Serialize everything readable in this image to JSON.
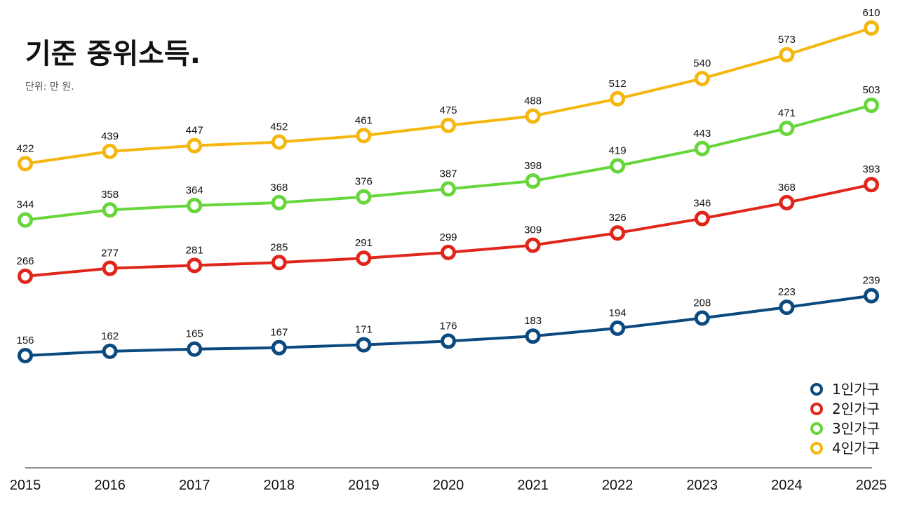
{
  "chart_data": {
    "type": "line",
    "title": "기준 중위소득.",
    "subtitle": "단위: 만 원.",
    "x": [
      "2015",
      "2016",
      "2017",
      "2018",
      "2019",
      "2020",
      "2021",
      "2022",
      "2023",
      "2024",
      "2025"
    ],
    "series": [
      {
        "name": "1인가구",
        "color": "#0b4a7f",
        "values": [
          156,
          162,
          165,
          167,
          171,
          176,
          183,
          194,
          208,
          223,
          239
        ]
      },
      {
        "name": "2인가구",
        "color": "#e0261b",
        "values": [
          266,
          277,
          281,
          285,
          291,
          299,
          309,
          326,
          346,
          368,
          393
        ]
      },
      {
        "name": "3인가구",
        "color": "#66d63a",
        "values": [
          344,
          358,
          364,
          368,
          376,
          387,
          398,
          419,
          443,
          471,
          503
        ]
      },
      {
        "name": "4인가구",
        "color": "#f5b70f",
        "values": [
          422,
          439,
          447,
          452,
          461,
          475,
          488,
          512,
          540,
          573,
          610
        ]
      }
    ],
    "ylim": [
      0,
      700
    ],
    "grid": false,
    "legend_position": "bottom-right"
  }
}
